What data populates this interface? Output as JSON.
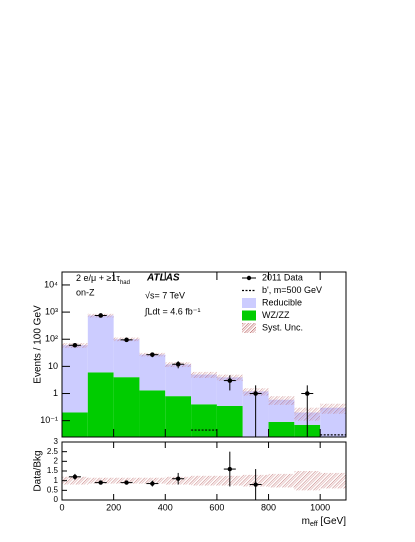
{
  "chart_data": {
    "type": "histogram",
    "labels": {
      "channel": "2 e/μ + ≥1τ",
      "channel_sub": "had",
      "region": "on-Z",
      "experiment": "ATLAS",
      "energy": "√s= 7 TeV",
      "lumi": "∫Ldt = 4.6 fb⁻¹"
    },
    "x_label": "m",
    "x_label_sub": "eff",
    "x_label_unit": " [GeV]",
    "y_label": "Events / 100 GeV",
    "ratio_y_label": "Data/Bkg",
    "bins": [
      0,
      100,
      200,
      300,
      400,
      500,
      600,
      700,
      800,
      900,
      1000,
      1100
    ],
    "xlim": [
      0,
      1100
    ],
    "xticks": [
      0,
      200,
      400,
      600,
      800,
      1000
    ],
    "ylim": [
      0.025,
      30000
    ],
    "log_y": true,
    "yticks": [
      {
        "value": 0.1,
        "label": "10⁻¹"
      },
      1,
      10,
      {
        "value": 100,
        "label": "10²"
      },
      {
        "value": 1000,
        "label": "10³"
      },
      {
        "value": 10000,
        "label": "10⁴"
      }
    ],
    "series": [
      {
        "name": "WZ/ZZ",
        "color": "#00cc00",
        "values": [
          0.2,
          6,
          4,
          1.3,
          0.8,
          0.4,
          0.35,
          null,
          0.09,
          0.07,
          null
        ]
      },
      {
        "name": "Reducible",
        "color": "#ccccff",
        "values": [
          60,
          744,
          96,
          26,
          11,
          4.6,
          3.6,
          1.2,
          0.5,
          0.13,
          0.3
        ]
      }
    ],
    "signal": {
      "name": "b', m=500 GeV",
      "color": "#000000",
      "values": [
        null,
        null,
        null,
        null,
        null,
        0.045,
        null,
        null,
        null,
        null,
        0.03
      ]
    },
    "data": {
      "name": "2011 Data",
      "x": [
        50,
        150,
        250,
        350,
        450,
        650,
        750,
        950
      ],
      "values": [
        60,
        750,
        95,
        27,
        12,
        3,
        1,
        1
      ],
      "errors": [
        7.7,
        27,
        9.7,
        5.2,
        3.5,
        1.7,
        1,
        1
      ]
    },
    "syst": {
      "name": "Syst. Unc.",
      "color": "#b05050",
      "relative": [
        0.2,
        0.15,
        0.15,
        0.15,
        0.2,
        0.25,
        0.25,
        0.3,
        0.35,
        0.5,
        0.4
      ]
    },
    "ratio": {
      "ylim": [
        0,
        3
      ],
      "yticks": [
        0,
        0.5,
        1,
        1.5,
        2,
        2.5,
        3
      ],
      "x": [
        50,
        150,
        250,
        350,
        450,
        650,
        750
      ],
      "values": [
        1.2,
        0.9,
        0.9,
        0.85,
        1.1,
        1.6,
        0.8
      ],
      "errors": [
        0.15,
        0.05,
        0.1,
        0.15,
        0.3,
        0.9,
        0.8
      ]
    }
  }
}
